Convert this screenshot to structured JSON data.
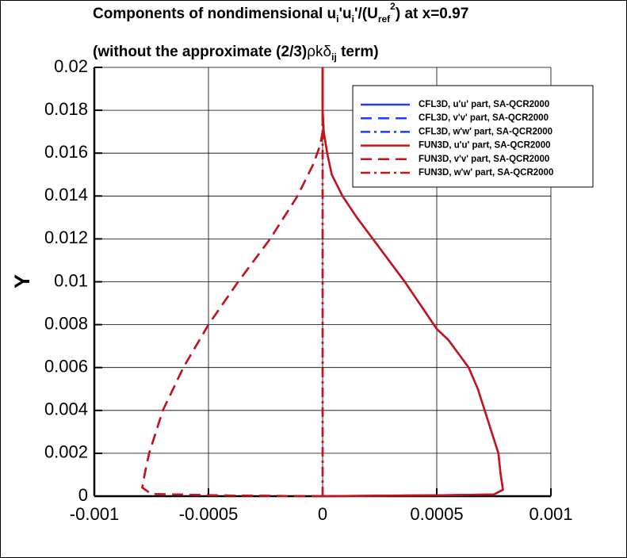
{
  "chart_data": {
    "type": "line",
    "title": [
      "Components of nondimensional u",
      "i",
      "'u",
      "i",
      "'/(U",
      "ref",
      "2",
      ") at x=0.97"
    ],
    "subtitle": [
      "(without the approximate (2/3)",
      "ρkδ",
      "ij",
      " term)"
    ],
    "y_label": "Y",
    "xlim": [
      -0.001,
      0.001
    ],
    "ylim": [
      0,
      0.02
    ],
    "xticks": [
      -0.001,
      -0.0005,
      0,
      0.0005,
      0.001
    ],
    "yticks": [
      0,
      0.002,
      0.004,
      0.006,
      0.008,
      0.01,
      0.012,
      0.014,
      0.016,
      0.018,
      0.02
    ],
    "grid": true,
    "legend": "upper right",
    "series": [
      {
        "name": "CFL3D, u'u' part, SA-QCR2000",
        "color": "#1a3cff",
        "dash": "solid",
        "x": [
          0,
          0.0002,
          0.0005,
          0.00075,
          0.00079,
          0.00078,
          0.00077,
          0.00074,
          0.00071,
          0.00068,
          0.00064,
          0.00055,
          0.0005,
          0.00036,
          0.00022,
          0.00015,
          8.7e-05,
          4e-05,
          2e-05,
          5e-06,
          0,
          0
        ],
        "values": [
          0,
          2e-05,
          4e-05,
          8e-05,
          0.0003,
          0.001,
          0.002,
          0.003,
          0.004,
          0.005,
          0.006,
          0.0073,
          0.0078,
          0.01,
          0.012,
          0.013,
          0.014,
          0.015,
          0.016,
          0.017,
          0.018,
          0.02
        ]
      },
      {
        "name": "CFL3D, v'v' part, SA-QCR2000",
        "color": "#1a3cff",
        "dash": "dashed",
        "x": [
          0,
          -0.0004,
          -0.00075,
          -0.00079,
          -0.00078,
          -0.00076,
          -0.0007,
          -0.00061,
          -0.0005,
          -0.00037,
          -0.00023,
          -0.00011,
          -4e-05,
          -1e-05,
          0,
          0
        ],
        "values": [
          0,
          3e-05,
          0.0001,
          0.0004,
          0.001,
          0.002,
          0.004,
          0.006,
          0.008,
          0.01,
          0.012,
          0.014,
          0.0155,
          0.0164,
          0.017,
          0.02
        ]
      },
      {
        "name": "CFL3D, w'w' part, SA-QCR2000",
        "color": "#1a3cff",
        "dash": "dashdot",
        "x": [
          0,
          0,
          0
        ],
        "values": [
          0,
          0.01,
          0.02
        ]
      },
      {
        "name": "FUN3D, u'u' part, SA-QCR2000",
        "color": "#cc1111",
        "dash": "solid",
        "x": [
          0,
          0.0002,
          0.0005,
          0.00075,
          0.00079,
          0.00078,
          0.00077,
          0.00074,
          0.00071,
          0.00068,
          0.00064,
          0.00055,
          0.0005,
          0.00036,
          0.00022,
          0.00015,
          8.7e-05,
          4e-05,
          2e-05,
          5e-06,
          0,
          0
        ],
        "values": [
          0,
          2e-05,
          4e-05,
          8e-05,
          0.0003,
          0.001,
          0.002,
          0.003,
          0.004,
          0.005,
          0.006,
          0.0073,
          0.0078,
          0.01,
          0.012,
          0.013,
          0.014,
          0.015,
          0.016,
          0.017,
          0.018,
          0.02
        ]
      },
      {
        "name": "FUN3D, v'v' part, SA-QCR2000",
        "color": "#cc1111",
        "dash": "dashed",
        "x": [
          0,
          -0.0004,
          -0.00075,
          -0.00079,
          -0.00078,
          -0.00076,
          -0.0007,
          -0.00061,
          -0.0005,
          -0.00037,
          -0.00023,
          -0.00011,
          -4e-05,
          -1e-05,
          0,
          0
        ],
        "values": [
          0,
          3e-05,
          0.0001,
          0.0004,
          0.001,
          0.002,
          0.004,
          0.006,
          0.008,
          0.01,
          0.012,
          0.014,
          0.0155,
          0.0164,
          0.017,
          0.02
        ]
      },
      {
        "name": "FUN3D, w'w' part, SA-QCR2000",
        "color": "#cc1111",
        "dash": "dashdot",
        "x": [
          0,
          0,
          0
        ],
        "values": [
          0,
          0.01,
          0.02
        ]
      }
    ]
  }
}
